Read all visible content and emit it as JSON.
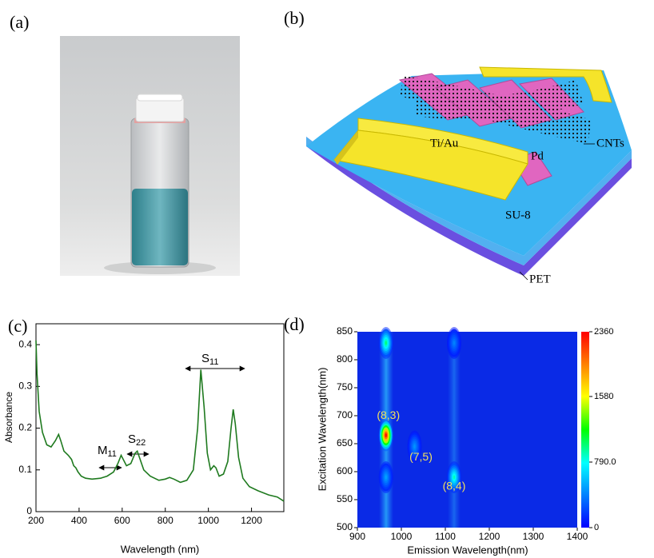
{
  "figure": {
    "panel_labels": [
      "(a)",
      "(b)",
      "(c)",
      "(d)"
    ],
    "diagram_labels": [
      "Ti/Au",
      "Pd",
      "CNTs",
      "SU-8",
      "PET"
    ]
  },
  "chart_data": [
    {
      "type": "line",
      "xlabel": "Wavelength (nm)",
      "ylabel": "Absorbance",
      "color": "#1f7a1f",
      "x": [
        200,
        205,
        215,
        230,
        250,
        270,
        290,
        305,
        315,
        330,
        350,
        365,
        375,
        385,
        395,
        410,
        430,
        460,
        500,
        530,
        560,
        580,
        595,
        605,
        620,
        640,
        660,
        670,
        680,
        700,
        730,
        770,
        800,
        820,
        840,
        870,
        900,
        930,
        950,
        965,
        980,
        995,
        1010,
        1025,
        1035,
        1050,
        1070,
        1090,
        1105,
        1115,
        1125,
        1140,
        1160,
        1190,
        1230,
        1280,
        1320,
        1350
      ],
      "values": [
        0.41,
        0.33,
        0.24,
        0.19,
        0.16,
        0.155,
        0.17,
        0.185,
        0.17,
        0.145,
        0.135,
        0.125,
        0.11,
        0.105,
        0.095,
        0.085,
        0.08,
        0.078,
        0.08,
        0.085,
        0.095,
        0.115,
        0.135,
        0.125,
        0.11,
        0.115,
        0.14,
        0.145,
        0.13,
        0.1,
        0.085,
        0.075,
        0.078,
        0.082,
        0.078,
        0.07,
        0.075,
        0.1,
        0.2,
        0.34,
        0.25,
        0.14,
        0.1,
        0.11,
        0.105,
        0.085,
        0.09,
        0.12,
        0.2,
        0.245,
        0.21,
        0.13,
        0.08,
        0.06,
        0.05,
        0.04,
        0.035,
        0.025
      ],
      "xlim": [
        200,
        1350
      ],
      "xticks": [
        200,
        400,
        600,
        800,
        1000,
        1200
      ],
      "ylim": [
        0,
        0.45
      ],
      "yticks": [
        0,
        0.1,
        0.2,
        0.3,
        0.4
      ],
      "annotations": [
        {
          "text": "M",
          "sub": "11"
        },
        {
          "text": "S",
          "sub": "22"
        },
        {
          "text": "S",
          "sub": "11"
        }
      ]
    },
    {
      "type": "heatmap",
      "xlabel": "Emission Wavelength(nm)",
      "ylabel": "Excitation Wavelength(nm)",
      "points": {
        "x": [
          965,
          1030,
          1120,
          965,
          965,
          1120
        ],
        "y": [
          665,
          645,
          590,
          830,
          590,
          830
        ],
        "values": [
          2360,
          450,
          900,
          1000,
          500,
          400
        ],
        "labels": [
          "(8,3)",
          "(7,5)",
          "(8,4)",
          null,
          null,
          null
        ]
      },
      "xlim": [
        900,
        1400
      ],
      "xticks": [
        900,
        1000,
        1100,
        1200,
        1300,
        1400
      ],
      "ylim": [
        500,
        850
      ],
      "yticks": [
        500,
        550,
        600,
        650,
        700,
        750,
        800,
        850
      ],
      "zlim": [
        0,
        2360
      ],
      "zticks": [
        0,
        {
          "value": 790,
          "label": "790.0"
        },
        1580,
        2360
      ],
      "label_color": "#f0e060"
    }
  ]
}
